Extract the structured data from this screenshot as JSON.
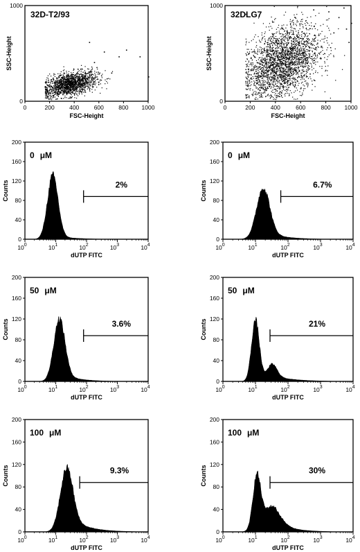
{
  "figure": {
    "background": "#ffffff",
    "ink": "#000000"
  },
  "chart_data": [
    {
      "type": "scatter",
      "title": "32D-T2/93",
      "xlabel": "FSC-Height",
      "ylabel": "SSC-Height",
      "xlim": [
        0,
        1000
      ],
      "ylim": [
        0,
        1000
      ],
      "xticks": [
        "0",
        "200",
        "400",
        "600",
        "800",
        "1000"
      ],
      "yticks": [
        "0",
        "1000"
      ],
      "cloud": {
        "center": [
          360,
          180
        ],
        "spread": [
          110,
          60
        ],
        "count": 1600,
        "tilt": 0.25,
        "outliers": [
          [
            820,
            540
          ],
          [
            760,
            470
          ],
          [
            640,
            520
          ],
          [
            930,
            470
          ],
          [
            1000,
            260
          ],
          [
            520,
            620
          ],
          [
            700,
            300
          ],
          [
            560,
            410
          ]
        ]
      }
    },
    {
      "type": "scatter",
      "title": "32DLG7",
      "xlabel": "FSC-Height",
      "ylabel": "SSC-Height",
      "xlim": [
        0,
        1000
      ],
      "ylim": [
        0,
        1000
      ],
      "xticks": [
        "0",
        "200",
        "400",
        "600",
        "800",
        "1000"
      ],
      "yticks": [
        "0",
        "1000"
      ],
      "cloud": {
        "center": [
          450,
          400
        ],
        "spread": [
          150,
          190
        ],
        "count": 2600,
        "tilt": 0.55,
        "outliers": [
          [
            900,
            880
          ],
          [
            960,
            760
          ],
          [
            820,
            940
          ],
          [
            980,
            620
          ],
          [
            700,
            960
          ],
          [
            1000,
            820
          ],
          [
            860,
            720
          ],
          [
            940,
            980
          ]
        ]
      }
    },
    {
      "type": "area",
      "label": "0",
      "unit": "μM",
      "percent": "2%",
      "xlabel": "dUTP FITC",
      "ylabel": "Counts",
      "xscale": "log",
      "xlim": [
        1,
        10000
      ],
      "ylim": [
        0,
        200
      ],
      "xticks": [
        "10",
        "10",
        "10",
        "10",
        "10"
      ],
      "xtick_exponents": [
        "0",
        "1",
        "2",
        "3",
        "4"
      ],
      "yticks": [
        "0",
        "40",
        "80",
        "120",
        "160",
        "200"
      ],
      "gate": [
        80,
        10000
      ],
      "peaks": [
        {
          "center": 8,
          "sigma": 0.17,
          "height": 128
        }
      ],
      "tail": {
        "start": 12,
        "level": 6,
        "decay": 0.55
      }
    },
    {
      "type": "area",
      "label": "0",
      "unit": "μM",
      "percent": "6.7%",
      "xlabel": "dUTP FITC",
      "ylabel": "Counts",
      "xscale": "log",
      "xlim": [
        1,
        10000
      ],
      "ylim": [
        0,
        200
      ],
      "xticks": [
        "10",
        "10",
        "10",
        "10",
        "10"
      ],
      "xtick_exponents": [
        "0",
        "1",
        "2",
        "3",
        "4"
      ],
      "yticks": [
        "0",
        "40",
        "80",
        "120",
        "160",
        "200"
      ],
      "gate": [
        60,
        10000
      ],
      "peaks": [
        {
          "center": 17,
          "sigma": 0.2,
          "height": 95
        }
      ],
      "tail": {
        "start": 25,
        "level": 14,
        "decay": 0.5
      }
    },
    {
      "type": "area",
      "label": "50",
      "unit": "μM",
      "percent": "3.6%",
      "xlabel": "dUTP FITC",
      "ylabel": "Counts",
      "xscale": "log",
      "xlim": [
        1,
        10000
      ],
      "ylim": [
        0,
        200
      ],
      "xticks": [
        "10",
        "10",
        "10",
        "10",
        "10"
      ],
      "xtick_exponents": [
        "0",
        "1",
        "2",
        "3",
        "4"
      ],
      "yticks": [
        "0",
        "40",
        "80",
        "120",
        "160",
        "200"
      ],
      "gate": [
        80,
        10000
      ],
      "peaks": [
        {
          "center": 13,
          "sigma": 0.18,
          "height": 112
        }
      ],
      "tail": {
        "start": 20,
        "level": 12,
        "decay": 0.5
      }
    },
    {
      "type": "area",
      "label": "50",
      "unit": "μM",
      "percent": "21%",
      "xlabel": "dUTP FITC",
      "ylabel": "Counts",
      "xscale": "log",
      "xlim": [
        1,
        10000
      ],
      "ylim": [
        0,
        200
      ],
      "xticks": [
        "10",
        "10",
        "10",
        "10",
        "10"
      ],
      "xtick_exponents": [
        "0",
        "1",
        "2",
        "3",
        "4"
      ],
      "yticks": [
        "0",
        "40",
        "80",
        "120",
        "160",
        "200"
      ],
      "gate": [
        28,
        10000
      ],
      "peaks": [
        {
          "center": 10,
          "sigma": 0.12,
          "height": 118
        },
        {
          "center": 32,
          "sigma": 0.15,
          "height": 24
        }
      ],
      "tail": {
        "start": 40,
        "level": 10,
        "decay": 0.6
      }
    },
    {
      "type": "area",
      "label": "100",
      "unit": "μM",
      "percent": "9.3%",
      "xlabel": "dUTP FITC",
      "ylabel": "Counts",
      "xscale": "log",
      "xlim": [
        1,
        10000
      ],
      "ylim": [
        0,
        200
      ],
      "xticks": [
        "10",
        "10",
        "10",
        "10",
        "10"
      ],
      "xtick_exponents": [
        "0",
        "1",
        "2",
        "3",
        "4"
      ],
      "yticks": [
        "0",
        "40",
        "80",
        "120",
        "160",
        "200"
      ],
      "gate": [
        60,
        10000
      ],
      "peaks": [
        {
          "center": 22,
          "sigma": 0.2,
          "height": 98
        }
      ],
      "tail": {
        "start": 35,
        "level": 22,
        "decay": 0.55
      }
    },
    {
      "type": "area",
      "label": "100",
      "unit": "μM",
      "percent": "30%",
      "xlabel": "dUTP FITC",
      "ylabel": "Counts",
      "xscale": "log",
      "xlim": [
        1,
        10000
      ],
      "ylim": [
        0,
        200
      ],
      "xticks": [
        "10",
        "10",
        "10",
        "10",
        "10"
      ],
      "xtick_exponents": [
        "0",
        "1",
        "2",
        "3",
        "4"
      ],
      "yticks": [
        "0",
        "40",
        "80",
        "120",
        "160",
        "200"
      ],
      "gate": [
        28,
        10000
      ],
      "peaks": [
        {
          "center": 11,
          "sigma": 0.12,
          "height": 92
        },
        {
          "center": 28,
          "sigma": 0.28,
          "height": 30
        }
      ],
      "tail": {
        "start": 40,
        "level": 18,
        "decay": 0.5
      }
    }
  ]
}
